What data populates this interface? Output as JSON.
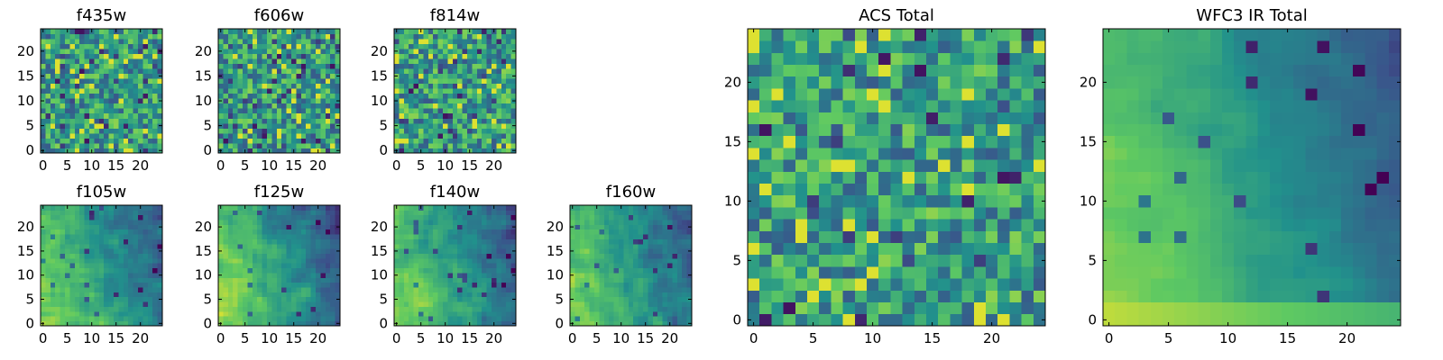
{
  "figure": {
    "title": ""
  },
  "chart_data": [
    {
      "type": "heatmap",
      "title": "f435w",
      "grid_size": 25,
      "pattern": "noise",
      "seed": 11,
      "xticks": [
        0,
        5,
        10,
        15,
        20
      ],
      "yticks": [
        0,
        5,
        10,
        15,
        20
      ],
      "xlim": [
        -0.5,
        24.5
      ],
      "ylim": [
        -0.5,
        24.5
      ],
      "colormap": [
        "#440154",
        "#3b528b",
        "#21918c",
        "#5ec962",
        "#fde725"
      ]
    },
    {
      "type": "heatmap",
      "title": "f606w",
      "grid_size": 25,
      "pattern": "noise",
      "seed": 23,
      "xticks": [
        0,
        5,
        10,
        15,
        20
      ],
      "yticks": [
        0,
        5,
        10,
        15,
        20
      ],
      "xlim": [
        -0.5,
        24.5
      ],
      "ylim": [
        -0.5,
        24.5
      ],
      "colormap": [
        "#440154",
        "#3b528b",
        "#21918c",
        "#5ec962",
        "#fde725"
      ]
    },
    {
      "type": "heatmap",
      "title": "f814w",
      "grid_size": 25,
      "pattern": "noise",
      "seed": 37,
      "xticks": [
        0,
        5,
        10,
        15,
        20
      ],
      "yticks": [
        0,
        5,
        10,
        15,
        20
      ],
      "xlim": [
        -0.5,
        24.5
      ],
      "ylim": [
        -0.5,
        24.5
      ],
      "colormap": [
        "#440154",
        "#3b528b",
        "#21918c",
        "#5ec962",
        "#fde725"
      ]
    },
    {
      "type": "heatmap",
      "title": "f105w",
      "grid_size": 25,
      "pattern": "smooth",
      "seed": 41,
      "xticks": [
        0,
        5,
        10,
        15,
        20
      ],
      "yticks": [
        0,
        5,
        10,
        15,
        20
      ],
      "xlim": [
        -0.5,
        24.5
      ],
      "ylim": [
        -0.5,
        24.5
      ],
      "colormap": [
        "#440154",
        "#3b528b",
        "#21918c",
        "#5ec962",
        "#fde725"
      ]
    },
    {
      "type": "heatmap",
      "title": "f125w",
      "grid_size": 25,
      "pattern": "smooth",
      "seed": 53,
      "xticks": [
        0,
        5,
        10,
        15,
        20
      ],
      "yticks": [
        0,
        5,
        10,
        15,
        20
      ],
      "xlim": [
        -0.5,
        24.5
      ],
      "ylim": [
        -0.5,
        24.5
      ],
      "colormap": [
        "#440154",
        "#3b528b",
        "#21918c",
        "#5ec962",
        "#fde725"
      ]
    },
    {
      "type": "heatmap",
      "title": "f140w",
      "grid_size": 25,
      "pattern": "smooth",
      "seed": 67,
      "xticks": [
        0,
        5,
        10,
        15,
        20
      ],
      "yticks": [
        0,
        5,
        10,
        15,
        20
      ],
      "xlim": [
        -0.5,
        24.5
      ],
      "ylim": [
        -0.5,
        24.5
      ],
      "colormap": [
        "#440154",
        "#3b528b",
        "#21918c",
        "#5ec962",
        "#fde725"
      ]
    },
    {
      "type": "heatmap",
      "title": "f160w",
      "grid_size": 25,
      "pattern": "smooth",
      "seed": 79,
      "xticks": [
        0,
        5,
        10,
        15,
        20
      ],
      "yticks": [
        0,
        5,
        10,
        15,
        20
      ],
      "xlim": [
        -0.5,
        24.5
      ],
      "ylim": [
        -0.5,
        24.5
      ],
      "colormap": [
        "#440154",
        "#3b528b",
        "#21918c",
        "#5ec962",
        "#fde725"
      ]
    },
    {
      "type": "heatmap",
      "title": "ACS Total",
      "grid_size": 25,
      "pattern": "noise",
      "seed": 97,
      "xticks": [
        0,
        5,
        10,
        15,
        20
      ],
      "yticks": [
        0,
        5,
        10,
        15,
        20
      ],
      "xlim": [
        -0.5,
        24.5
      ],
      "ylim": [
        -0.5,
        24.5
      ],
      "colormap": [
        "#440154",
        "#3b528b",
        "#21918c",
        "#5ec962",
        "#fde725"
      ]
    },
    {
      "type": "heatmap",
      "title": "WFC3 IR Total",
      "grid_size": 25,
      "pattern": "gradient",
      "seed": 101,
      "xticks": [
        0,
        5,
        10,
        15,
        20
      ],
      "yticks": [
        0,
        5,
        10,
        15,
        20
      ],
      "xlim": [
        -0.5,
        24.5
      ],
      "ylim": [
        -0.5,
        24.5
      ],
      "colormap": [
        "#440154",
        "#3b528b",
        "#21918c",
        "#5ec962",
        "#fde725"
      ]
    }
  ]
}
